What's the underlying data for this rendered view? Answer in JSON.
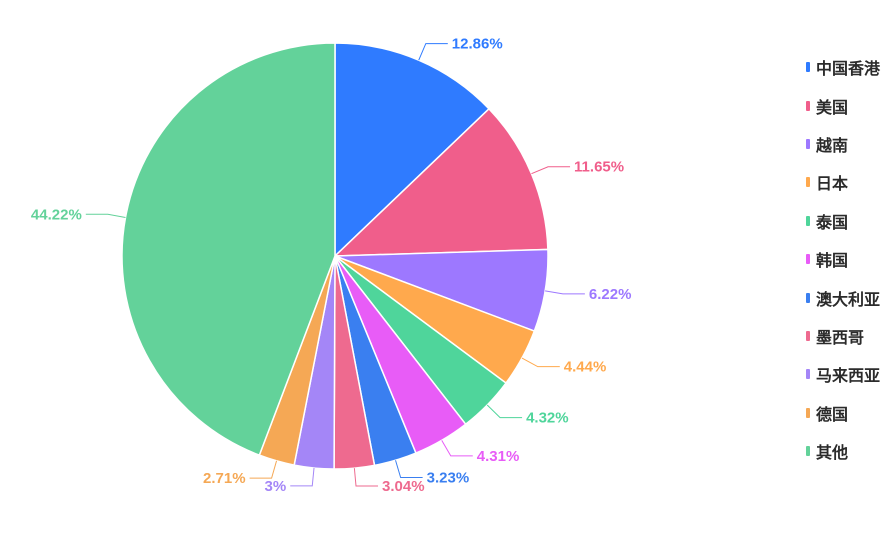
{
  "chart_data": {
    "type": "pie",
    "title": "",
    "legend_position": "right",
    "slices": [
      {
        "name": "中国香港",
        "value": 12.86,
        "label": "12.86%",
        "color": "#2f7bff"
      },
      {
        "name": "美国",
        "value": 11.65,
        "label": "11.65%",
        "color": "#f05e8b"
      },
      {
        "name": "越南",
        "value": 6.22,
        "label": "6.22%",
        "color": "#9d78ff"
      },
      {
        "name": "日本",
        "value": 4.44,
        "label": "4.44%",
        "color": "#ffa94d"
      },
      {
        "name": "泰国",
        "value": 4.32,
        "label": "4.32%",
        "color": "#4fd59b"
      },
      {
        "name": "韩国",
        "value": 4.31,
        "label": "4.31%",
        "color": "#e85cf7"
      },
      {
        "name": "澳大利亚",
        "value": 3.23,
        "label": "3.23%",
        "color": "#3a7ff0"
      },
      {
        "name": "墨西哥",
        "value": 3.04,
        "label": "3.04%",
        "color": "#ee6a8f"
      },
      {
        "name": "马来西亚",
        "value": 3.0,
        "label": "3%",
        "color": "#a486f7"
      },
      {
        "name": "德国",
        "value": 2.71,
        "label": "2.71%",
        "color": "#f5a855"
      },
      {
        "name": "其他",
        "value": 44.22,
        "label": "44.22%",
        "color": "#63d29a"
      }
    ]
  }
}
